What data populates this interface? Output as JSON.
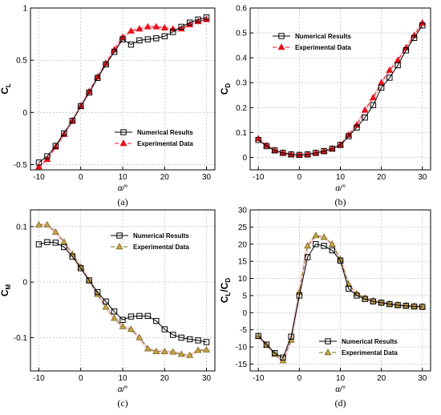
{
  "colors": {
    "numerical": "#000000",
    "experimental": "#e8101a",
    "experimental_alt": "#7a6a1a",
    "marker_fill_alt": "#c8a24a",
    "grid": "#b0b0b0"
  },
  "chart_data": [
    {
      "panel": "(a)",
      "type": "line",
      "xlabel": "α/°",
      "ylabel_main": "C",
      "ylabel_sub": "L",
      "xlim": [
        -12,
        32
      ],
      "ylim": [
        -0.55,
        1.0
      ],
      "xticks": [
        "-10",
        "0",
        "10",
        "20",
        "30"
      ],
      "xtick_values": [
        -10,
        0,
        10,
        20,
        30
      ],
      "yticks": [
        "-0.5",
        "0",
        "0.5",
        "1"
      ],
      "ytick_values": [
        -0.5,
        0,
        0.5,
        1
      ],
      "grid": true,
      "legend_position": "lower-right",
      "series": [
        {
          "name": "Numerical Results",
          "style": "numerical",
          "x": [
            -10,
            -8,
            -6,
            -4,
            -2,
            0,
            2,
            4,
            6,
            8,
            10,
            12,
            14,
            16,
            18,
            20,
            22,
            24,
            26,
            28,
            30
          ],
          "y": [
            -0.48,
            -0.42,
            -0.32,
            -0.2,
            -0.08,
            0.06,
            0.19,
            0.33,
            0.46,
            0.58,
            0.7,
            0.65,
            0.69,
            0.7,
            0.71,
            0.73,
            0.77,
            0.82,
            0.86,
            0.89,
            0.91
          ]
        },
        {
          "name": "Experimental Data",
          "style": "experimental",
          "x": [
            -10,
            -8,
            -6,
            -4,
            -2,
            0,
            2,
            4,
            6,
            8,
            10,
            12,
            14,
            16,
            18,
            20,
            22,
            24,
            26,
            28,
            30
          ],
          "y": [
            -0.52,
            -0.45,
            -0.33,
            -0.21,
            -0.08,
            0.06,
            0.2,
            0.34,
            0.47,
            0.6,
            0.72,
            0.78,
            0.8,
            0.82,
            0.82,
            0.81,
            0.8,
            0.8,
            0.84,
            0.87,
            0.89
          ]
        }
      ]
    },
    {
      "panel": "(b)",
      "type": "line",
      "xlabel": "α/°",
      "ylabel_main": "C",
      "ylabel_sub": "D",
      "xlim": [
        -12,
        32
      ],
      "ylim": [
        -0.05,
        0.6
      ],
      "xticks": [
        "-10",
        "0",
        "10",
        "20",
        "30"
      ],
      "xtick_values": [
        -10,
        0,
        10,
        20,
        30
      ],
      "yticks": [
        "0",
        "0.1",
        "0.2",
        "0.3",
        "0.4",
        "0.5",
        "0.6"
      ],
      "ytick_values": [
        0,
        0.1,
        0.2,
        0.3,
        0.4,
        0.5,
        0.6
      ],
      "grid": true,
      "legend_position": "top-left",
      "series": [
        {
          "name": "Numerical Results",
          "style": "numerical",
          "x": [
            -10,
            -8,
            -6,
            -4,
            -2,
            0,
            2,
            4,
            6,
            8,
            10,
            12,
            14,
            16,
            18,
            20,
            22,
            24,
            26,
            28,
            30
          ],
          "y": [
            0.07,
            0.045,
            0.028,
            0.018,
            0.012,
            0.01,
            0.012,
            0.018,
            0.025,
            0.035,
            0.05,
            0.085,
            0.12,
            0.16,
            0.21,
            0.28,
            0.32,
            0.37,
            0.43,
            0.48,
            0.53
          ]
        },
        {
          "name": "Experimental Data",
          "style": "experimental",
          "x": [
            -10,
            -8,
            -6,
            -4,
            -2,
            0,
            2,
            4,
            6,
            8,
            10,
            12,
            14,
            16,
            18,
            20,
            22,
            24,
            26,
            28,
            30
          ],
          "y": [
            0.075,
            0.048,
            0.028,
            0.018,
            0.012,
            0.01,
            0.012,
            0.018,
            0.025,
            0.035,
            0.05,
            0.09,
            0.13,
            0.19,
            0.24,
            0.3,
            0.35,
            0.39,
            0.44,
            0.49,
            0.54
          ]
        }
      ]
    },
    {
      "panel": "(c)",
      "type": "line",
      "xlabel": "α/°",
      "ylabel_main": "C",
      "ylabel_sub": "M",
      "xlim": [
        -12,
        32
      ],
      "ylim": [
        -0.16,
        0.13
      ],
      "xticks": [
        "-10",
        "0",
        "10",
        "20",
        "30"
      ],
      "xtick_values": [
        -10,
        0,
        10,
        20,
        30
      ],
      "yticks": [
        "-0.1",
        "0",
        "0.1"
      ],
      "ytick_values": [
        -0.1,
        0,
        0.1
      ],
      "grid": true,
      "legend_position": "top-right",
      "series": [
        {
          "name": "Numerical Results",
          "style": "numerical",
          "x": [
            -10,
            -8,
            -6,
            -4,
            -2,
            0,
            2,
            4,
            6,
            8,
            10,
            12,
            14,
            16,
            18,
            20,
            22,
            24,
            26,
            28,
            30
          ],
          "y": [
            0.068,
            0.072,
            0.071,
            0.063,
            0.046,
            0.025,
            0.003,
            -0.018,
            -0.035,
            -0.053,
            -0.068,
            -0.062,
            -0.061,
            -0.061,
            -0.07,
            -0.085,
            -0.095,
            -0.1,
            -0.103,
            -0.105,
            -0.108
          ]
        },
        {
          "name": "Experimental Data",
          "style": "experimental_alt",
          "x": [
            -10,
            -8,
            -6,
            -4,
            -2,
            0,
            2,
            4,
            6,
            8,
            10,
            12,
            14,
            16,
            18,
            20,
            22,
            24,
            26,
            28,
            30
          ],
          "y": [
            0.103,
            0.103,
            0.09,
            0.072,
            0.05,
            0.027,
            0.003,
            -0.022,
            -0.045,
            -0.065,
            -0.08,
            -0.085,
            -0.1,
            -0.12,
            -0.125,
            -0.125,
            -0.126,
            -0.13,
            -0.132,
            -0.123,
            -0.122
          ]
        }
      ]
    },
    {
      "panel": "(d)",
      "type": "line",
      "xlabel": "α/°",
      "ylabel_main": "C",
      "ylabel_main_sub": "L",
      "ylabel_mid": "/C",
      "ylabel_sub": "D",
      "xlim": [
        -12,
        32
      ],
      "ylim": [
        -17,
        30
      ],
      "xticks": [
        "-10",
        "0",
        "10",
        "20",
        "30"
      ],
      "xtick_values": [
        -10,
        0,
        10,
        20,
        30
      ],
      "yticks": [
        "-15",
        "-10",
        "-5",
        "0",
        "5",
        "10",
        "15",
        "20",
        "25",
        "30"
      ],
      "ytick_values": [
        -15,
        -10,
        -5,
        0,
        5,
        10,
        15,
        20,
        25,
        30
      ],
      "grid": true,
      "legend_position": "bottom-right",
      "series": [
        {
          "name": "Numerical Results",
          "style": "numerical",
          "x": [
            -10,
            -8,
            -6,
            -4,
            -2,
            0,
            2,
            4,
            6,
            8,
            10,
            12,
            14,
            16,
            18,
            20,
            22,
            24,
            26,
            28,
            30
          ],
          "y": [
            -6.8,
            -9.3,
            -11.8,
            -13.1,
            -7,
            5,
            16.2,
            20,
            19.5,
            18.2,
            15.2,
            7,
            5,
            4,
            3.3,
            2.9,
            2.5,
            2.2,
            2,
            1.8,
            1.7
          ]
        },
        {
          "name": "Experimental Data",
          "style": "experimental_alt",
          "x": [
            -10,
            -8,
            -6,
            -4,
            -2,
            0,
            2,
            4,
            6,
            8,
            10,
            12,
            14,
            16,
            18,
            20,
            22,
            24,
            26,
            28,
            30
          ],
          "y": [
            -6.9,
            -9.5,
            -12.1,
            -14,
            -8,
            6,
            19.5,
            22.5,
            22,
            20,
            15.5,
            8.3,
            5.5,
            4.3,
            3.5,
            3,
            2.6,
            2.3,
            2.1,
            1.9,
            1.8
          ]
        }
      ]
    }
  ]
}
